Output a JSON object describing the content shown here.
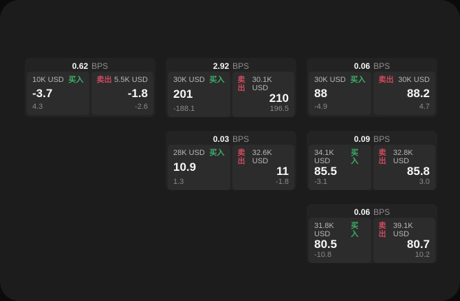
{
  "labels": {
    "bps_unit": "BPS",
    "buy": "买入",
    "sell": "卖出"
  },
  "colors": {
    "buy": "#3fae68",
    "sell": "#cc4a5e",
    "panel_bg": "#1c1c1c",
    "card_bg": "#232323",
    "tile_bg": "#2c2c2c",
    "outer_bg": "#0b0b0b"
  },
  "cards": [
    {
      "row": 1,
      "col": 1,
      "bps": "0.62",
      "buy": {
        "amount": "10K USD",
        "price": "-3.7",
        "delta": "4.3"
      },
      "sell": {
        "amount": "5.5K USD",
        "price": "-1.8",
        "delta": "-2.6"
      }
    },
    {
      "row": 1,
      "col": 2,
      "bps": "2.92",
      "buy": {
        "amount": "30K USD",
        "price": "201",
        "delta": "-188.1"
      },
      "sell": {
        "amount": "30.1K USD",
        "price": "210",
        "delta": "196.5"
      }
    },
    {
      "row": 1,
      "col": 3,
      "bps": "0.06",
      "buy": {
        "amount": "30K USD",
        "price": "88",
        "delta": "-4.9"
      },
      "sell": {
        "amount": "30K USD",
        "price": "88.2",
        "delta": "4.7"
      }
    },
    {
      "row": 2,
      "col": 2,
      "bps": "0.03",
      "buy": {
        "amount": "28K USD",
        "price": "10.9",
        "delta": "1.3"
      },
      "sell": {
        "amount": "32.6K USD",
        "price": "11",
        "delta": "-1.8"
      }
    },
    {
      "row": 2,
      "col": 3,
      "bps": "0.09",
      "buy": {
        "amount": "34.1K USD",
        "price": "85.5",
        "delta": "-3.1"
      },
      "sell": {
        "amount": "32.8K USD",
        "price": "85.8",
        "delta": "3.0"
      }
    },
    {
      "row": 3,
      "col": 3,
      "bps": "0.06",
      "buy": {
        "amount": "31.8K USD",
        "price": "80.5",
        "delta": "-10.8"
      },
      "sell": {
        "amount": "39.1K USD",
        "price": "80.7",
        "delta": "10.2"
      }
    }
  ]
}
